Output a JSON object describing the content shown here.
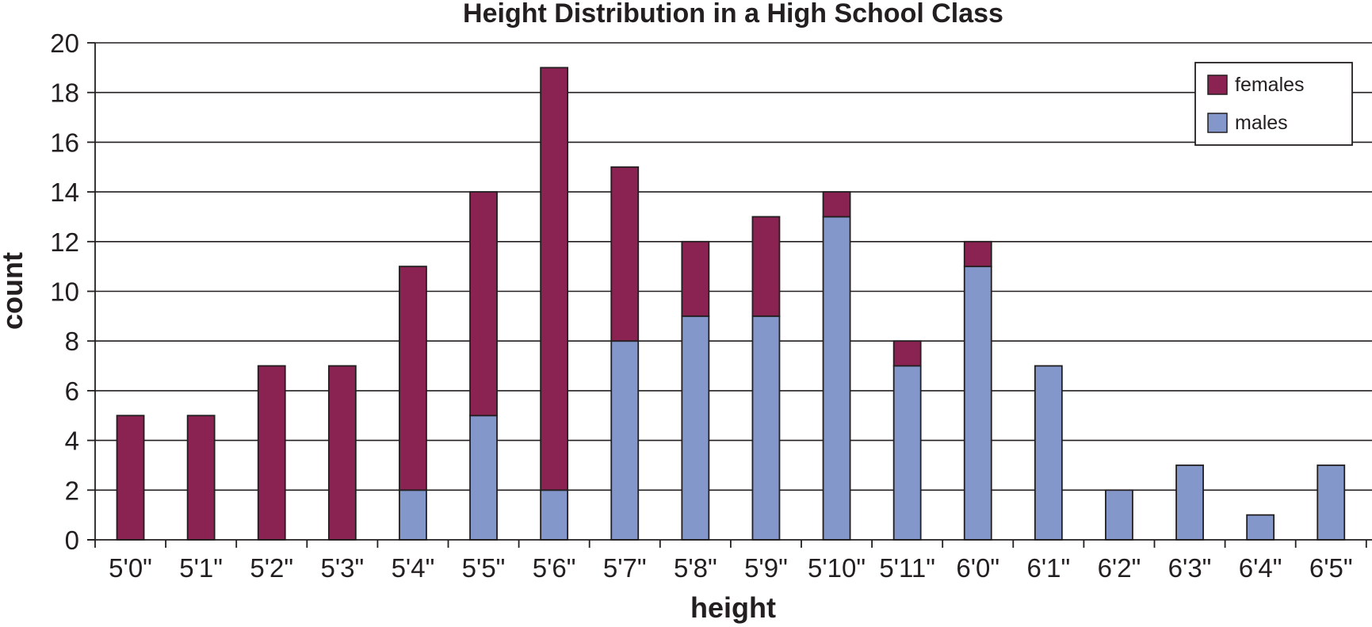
{
  "chart_data": {
    "type": "bar",
    "stacked": true,
    "title": "Height Distribution in a High School Class",
    "xlabel": "height",
    "ylabel": "count",
    "ylim": [
      0,
      20
    ],
    "yticks": [
      0,
      2,
      4,
      6,
      8,
      10,
      12,
      14,
      16,
      18,
      20
    ],
    "grid": true,
    "legend_position": "top-right",
    "categories": [
      "5'0\"",
      "5'1\"",
      "5'2\"",
      "5'3\"",
      "5'4\"",
      "5'5\"",
      "5'6\"",
      "5'7\"",
      "5'8\"",
      "5'9\"",
      "5'10\"",
      "5'11\"",
      "6'0\"",
      "6'1\"",
      "6'2\"",
      "6'3\"",
      "6'4\"",
      "6'5\""
    ],
    "series": [
      {
        "name": "males",
        "color": "#8497cb",
        "values": [
          0,
          0,
          0,
          0,
          2,
          5,
          2,
          8,
          9,
          9,
          13,
          7,
          11,
          7,
          2,
          3,
          1,
          3
        ]
      },
      {
        "name": "females",
        "color": "#8a2252",
        "values": [
          5,
          5,
          7,
          7,
          9,
          9,
          17,
          7,
          3,
          4,
          1,
          1,
          1,
          0,
          0,
          0,
          0,
          0
        ]
      }
    ],
    "legend_order": [
      "females",
      "males"
    ]
  }
}
